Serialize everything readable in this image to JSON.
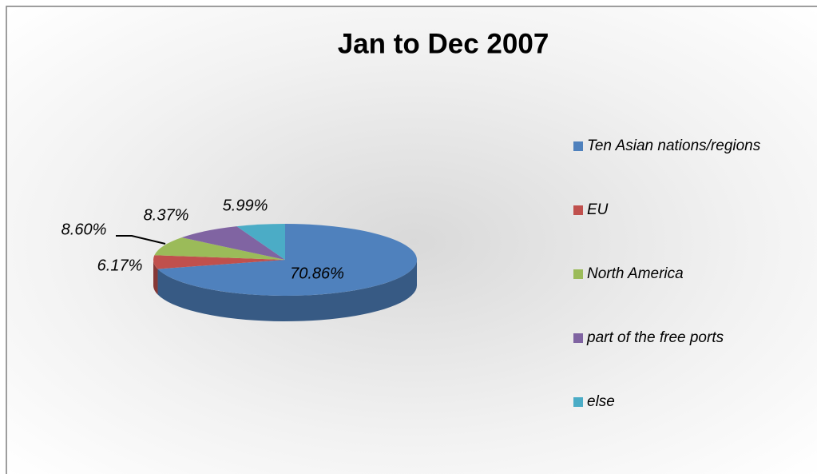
{
  "chart_data": {
    "type": "pie3d",
    "title": "Jan to Dec 2007",
    "categories": [
      "Ten Asian nations/regions",
      "EU",
      "North America",
      "part of the free ports",
      "else"
    ],
    "values": [
      70.86,
      6.17,
      8.6,
      8.37,
      5.99
    ],
    "value_labels": [
      "70.86%",
      "6.17%",
      "8.60%",
      "8.37%",
      "5.99%"
    ],
    "colors": [
      "#4f81bd",
      "#c0504d",
      "#9bbb59",
      "#8064a2",
      "#4bacc6"
    ],
    "legend": "right"
  }
}
